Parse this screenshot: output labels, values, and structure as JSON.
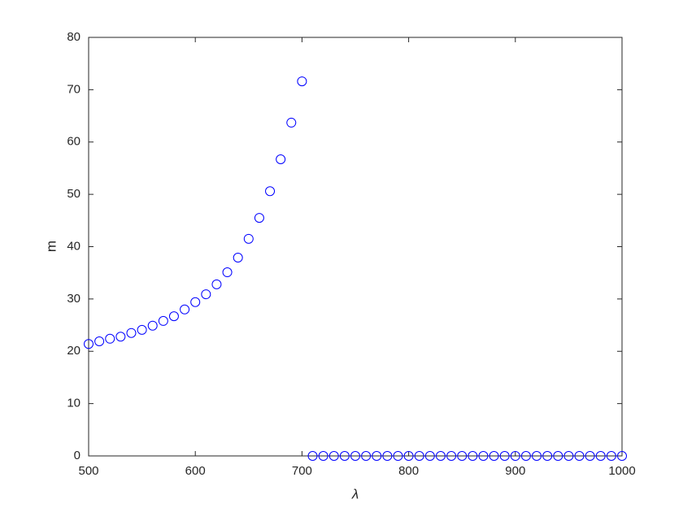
{
  "chart_data": {
    "type": "scatter",
    "x_label": "λ",
    "y_label": "m",
    "color": "#0000ff",
    "marker": "open-circle",
    "x": [
      500,
      510,
      520,
      530,
      540,
      550,
      560,
      570,
      580,
      590,
      600,
      610,
      620,
      630,
      640,
      650,
      660,
      670,
      680,
      690,
      700,
      710,
      720,
      730,
      740,
      750,
      760,
      770,
      780,
      790,
      800,
      810,
      820,
      830,
      840,
      850,
      860,
      870,
      880,
      890,
      900,
      910,
      920,
      930,
      940,
      950,
      960,
      970,
      980,
      990,
      1000
    ],
    "values": [
      21.4,
      21.9,
      22.4,
      22.8,
      23.5,
      24.1,
      24.9,
      25.8,
      26.7,
      28.0,
      29.4,
      30.9,
      32.8,
      35.1,
      37.9,
      41.5,
      45.5,
      50.6,
      56.7,
      63.7,
      71.6,
      0,
      0,
      0,
      0,
      0,
      0,
      0,
      0,
      0,
      0,
      0,
      0,
      0,
      0,
      0,
      0,
      0,
      0,
      0,
      0,
      0,
      0,
      0,
      0,
      0,
      0,
      0,
      0,
      0,
      0
    ],
    "xlim": [
      500,
      1000
    ],
    "ylim": [
      0,
      80
    ],
    "xticks": [
      500,
      600,
      700,
      800,
      900,
      1000
    ],
    "yticks": [
      0,
      10,
      20,
      30,
      40,
      50,
      60,
      70,
      80
    ],
    "grid": false
  }
}
